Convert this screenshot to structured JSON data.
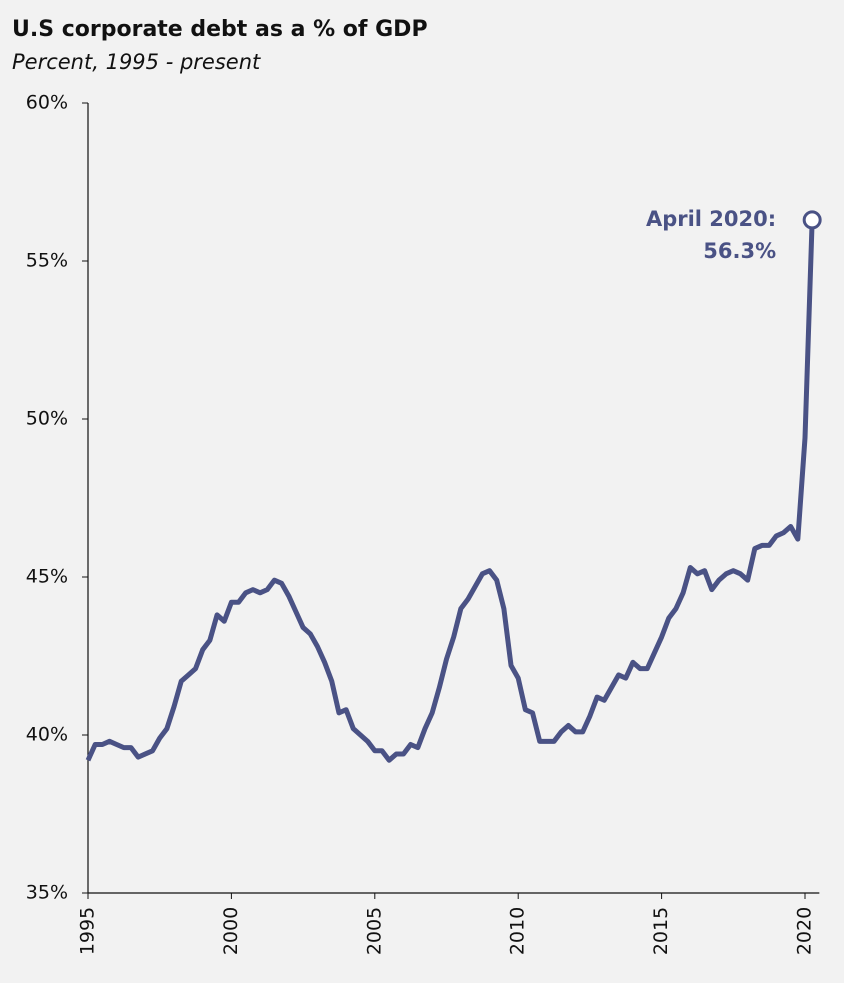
{
  "chart_data": {
    "type": "line",
    "title": "U.S corporate debt as a % of GDP",
    "subtitle": "Percent, 1995 - present",
    "annotation": [
      "April 2020:",
      "56.3%"
    ],
    "x": [
      1995,
      1995.25,
      1995.5,
      1995.75,
      1996,
      1996.25,
      1996.5,
      1996.75,
      1997,
      1997.25,
      1997.5,
      1997.75,
      1998,
      1998.25,
      1998.5,
      1998.75,
      1999,
      1999.25,
      1999.5,
      1999.75,
      2000,
      2000.25,
      2000.5,
      2000.75,
      2001,
      2001.25,
      2001.5,
      2001.75,
      2002,
      2002.25,
      2002.5,
      2002.75,
      2003,
      2003.25,
      2003.5,
      2003.75,
      2004,
      2004.25,
      2004.5,
      2004.75,
      2005,
      2005.25,
      2005.5,
      2005.75,
      2006,
      2006.25,
      2006.5,
      2006.75,
      2007,
      2007.25,
      2007.5,
      2007.75,
      2008,
      2008.25,
      2008.5,
      2008.75,
      2009,
      2009.25,
      2009.5,
      2009.75,
      2010,
      2010.25,
      2010.5,
      2010.75,
      2011,
      2011.25,
      2011.5,
      2011.75,
      2012,
      2012.25,
      2012.5,
      2012.75,
      2013,
      2013.25,
      2013.5,
      2013.75,
      2014,
      2014.25,
      2014.5,
      2014.75,
      2015,
      2015.25,
      2015.5,
      2015.75,
      2016,
      2016.25,
      2016.5,
      2016.75,
      2017,
      2017.25,
      2017.5,
      2017.75,
      2018,
      2018.25,
      2018.5,
      2018.75,
      2019,
      2019.25,
      2019.5,
      2019.75,
      2020,
      2020.25
    ],
    "series": [
      {
        "name": "U.S corporate debt",
        "color": "#4a5285",
        "values": [
          39.2,
          39.7,
          39.7,
          39.8,
          39.7,
          39.6,
          39.6,
          39.3,
          39.4,
          39.5,
          39.9,
          40.2,
          40.9,
          41.7,
          41.9,
          42.1,
          42.7,
          43.0,
          43.8,
          43.6,
          44.2,
          44.2,
          44.5,
          44.6,
          44.5,
          44.6,
          44.9,
          44.8,
          44.4,
          43.9,
          43.4,
          43.2,
          42.8,
          42.3,
          41.7,
          40.7,
          40.8,
          40.2,
          40.0,
          39.8,
          39.5,
          39.5,
          39.2,
          39.4,
          39.4,
          39.7,
          39.6,
          40.2,
          40.7,
          41.5,
          42.4,
          43.1,
          44.0,
          44.3,
          44.7,
          45.1,
          45.2,
          44.9,
          44.0,
          42.2,
          41.8,
          40.8,
          40.7,
          39.8,
          39.8,
          39.8,
          40.1,
          40.3,
          40.1,
          40.1,
          40.6,
          41.2,
          41.1,
          41.5,
          41.9,
          41.8,
          42.3,
          42.1,
          42.1,
          42.6,
          43.1,
          43.7,
          44.0,
          44.5,
          45.3,
          45.1,
          45.2,
          44.6,
          44.9,
          45.1,
          45.2,
          45.1,
          44.9,
          45.9,
          46.0,
          46.0,
          46.3,
          46.4,
          46.6,
          46.2,
          49.4,
          56.3
        ]
      }
    ],
    "xlim": [
      1995,
      2020.5
    ],
    "xticks": [
      1995,
      2000,
      2005,
      2010,
      2015,
      2020
    ],
    "ylim": [
      35,
      60
    ],
    "yticks": [
      {
        "value": 35,
        "label": "35%"
      },
      {
        "value": 40,
        "label": "40%"
      },
      {
        "value": 45,
        "label": "45%"
      },
      {
        "value": 50,
        "label": "50%"
      },
      {
        "value": 55,
        "label": "55%"
      },
      {
        "value": 60,
        "label": "60%"
      }
    ]
  }
}
